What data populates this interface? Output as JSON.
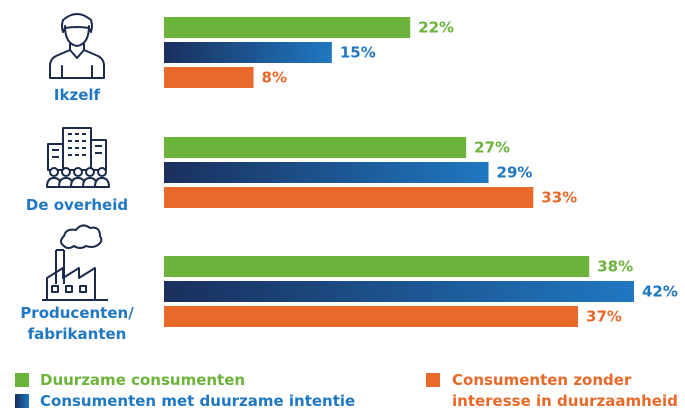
{
  "chart_data": {
    "type": "bar",
    "orientation": "horizontal",
    "categories": [
      "Ikzelf",
      "De overheid",
      "Producenten/ fabrikanten"
    ],
    "category_lines": [
      [
        "Ikzelf"
      ],
      [
        "De overheid"
      ],
      [
        "Producenten/",
        "fabrikanten"
      ]
    ],
    "category_icons": [
      "person-icon",
      "government-building-icon",
      "factory-icon"
    ],
    "series": [
      {
        "name": "Duurzame consumenten",
        "values": [
          22,
          27,
          38
        ],
        "value_labels": [
          "22%",
          "27%",
          "38%"
        ],
        "color": "#6bb33b"
      },
      {
        "name": "Consumenten met duurzame intentie",
        "values": [
          15,
          29,
          42
        ],
        "value_labels": [
          "15%",
          "29%",
          "42%"
        ],
        "color": "#1f78c1",
        "gradient_start": "#1a2f5c"
      },
      {
        "name": "Consumenten zonder interesse in duurzaamheid",
        "values": [
          8,
          33,
          37
        ],
        "value_labels": [
          "8%",
          "33%",
          "37%"
        ],
        "color": "#e8692a"
      }
    ],
    "legend_lines": [
      [
        "Duurzame consumenten"
      ],
      [
        "Consumenten met duurzame intentie"
      ],
      [
        "Consumenten zonder",
        "interesse in duurzaamheid"
      ]
    ],
    "unit": "%",
    "xlim": [
      0,
      42
    ],
    "grid": false,
    "legend_position": "bottom",
    "category_label_color": "#1f78c1",
    "icon_color": "#1a2b4c"
  }
}
